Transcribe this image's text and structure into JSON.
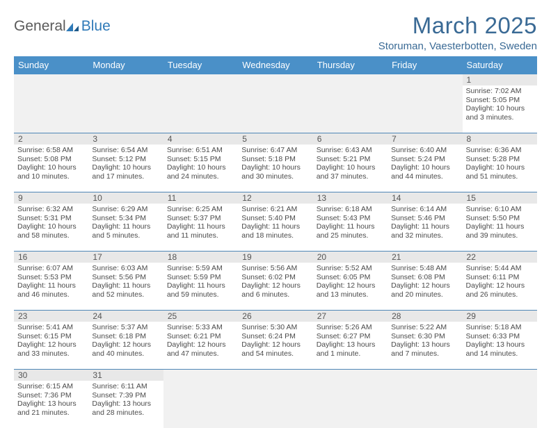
{
  "logo": {
    "text1": "General",
    "text2": "Blue"
  },
  "title": "March 2025",
  "location": "Storuman, Vaesterbotten, Sweden",
  "colors": {
    "header_bg": "#4a90c8",
    "header_text": "#ffffff",
    "title_color": "#3a6a95",
    "row_border": "#4e86b6",
    "daynum_bg": "#e8e8e8",
    "empty_bg": "#f1f1f1"
  },
  "day_names": [
    "Sunday",
    "Monday",
    "Tuesday",
    "Wednesday",
    "Thursday",
    "Friday",
    "Saturday"
  ],
  "weeks": [
    [
      null,
      null,
      null,
      null,
      null,
      null,
      {
        "n": "1",
        "sunrise": "7:02 AM",
        "sunset": "5:05 PM",
        "daylight": "10 hours and 3 minutes."
      }
    ],
    [
      {
        "n": "2",
        "sunrise": "6:58 AM",
        "sunset": "5:08 PM",
        "daylight": "10 hours and 10 minutes."
      },
      {
        "n": "3",
        "sunrise": "6:54 AM",
        "sunset": "5:12 PM",
        "daylight": "10 hours and 17 minutes."
      },
      {
        "n": "4",
        "sunrise": "6:51 AM",
        "sunset": "5:15 PM",
        "daylight": "10 hours and 24 minutes."
      },
      {
        "n": "5",
        "sunrise": "6:47 AM",
        "sunset": "5:18 PM",
        "daylight": "10 hours and 30 minutes."
      },
      {
        "n": "6",
        "sunrise": "6:43 AM",
        "sunset": "5:21 PM",
        "daylight": "10 hours and 37 minutes."
      },
      {
        "n": "7",
        "sunrise": "6:40 AM",
        "sunset": "5:24 PM",
        "daylight": "10 hours and 44 minutes."
      },
      {
        "n": "8",
        "sunrise": "6:36 AM",
        "sunset": "5:28 PM",
        "daylight": "10 hours and 51 minutes."
      }
    ],
    [
      {
        "n": "9",
        "sunrise": "6:32 AM",
        "sunset": "5:31 PM",
        "daylight": "10 hours and 58 minutes."
      },
      {
        "n": "10",
        "sunrise": "6:29 AM",
        "sunset": "5:34 PM",
        "daylight": "11 hours and 5 minutes."
      },
      {
        "n": "11",
        "sunrise": "6:25 AM",
        "sunset": "5:37 PM",
        "daylight": "11 hours and 11 minutes."
      },
      {
        "n": "12",
        "sunrise": "6:21 AM",
        "sunset": "5:40 PM",
        "daylight": "11 hours and 18 minutes."
      },
      {
        "n": "13",
        "sunrise": "6:18 AM",
        "sunset": "5:43 PM",
        "daylight": "11 hours and 25 minutes."
      },
      {
        "n": "14",
        "sunrise": "6:14 AM",
        "sunset": "5:46 PM",
        "daylight": "11 hours and 32 minutes."
      },
      {
        "n": "15",
        "sunrise": "6:10 AM",
        "sunset": "5:50 PM",
        "daylight": "11 hours and 39 minutes."
      }
    ],
    [
      {
        "n": "16",
        "sunrise": "6:07 AM",
        "sunset": "5:53 PM",
        "daylight": "11 hours and 46 minutes."
      },
      {
        "n": "17",
        "sunrise": "6:03 AM",
        "sunset": "5:56 PM",
        "daylight": "11 hours and 52 minutes."
      },
      {
        "n": "18",
        "sunrise": "5:59 AM",
        "sunset": "5:59 PM",
        "daylight": "11 hours and 59 minutes."
      },
      {
        "n": "19",
        "sunrise": "5:56 AM",
        "sunset": "6:02 PM",
        "daylight": "12 hours and 6 minutes."
      },
      {
        "n": "20",
        "sunrise": "5:52 AM",
        "sunset": "6:05 PM",
        "daylight": "12 hours and 13 minutes."
      },
      {
        "n": "21",
        "sunrise": "5:48 AM",
        "sunset": "6:08 PM",
        "daylight": "12 hours and 20 minutes."
      },
      {
        "n": "22",
        "sunrise": "5:44 AM",
        "sunset": "6:11 PM",
        "daylight": "12 hours and 26 minutes."
      }
    ],
    [
      {
        "n": "23",
        "sunrise": "5:41 AM",
        "sunset": "6:15 PM",
        "daylight": "12 hours and 33 minutes."
      },
      {
        "n": "24",
        "sunrise": "5:37 AM",
        "sunset": "6:18 PM",
        "daylight": "12 hours and 40 minutes."
      },
      {
        "n": "25",
        "sunrise": "5:33 AM",
        "sunset": "6:21 PM",
        "daylight": "12 hours and 47 minutes."
      },
      {
        "n": "26",
        "sunrise": "5:30 AM",
        "sunset": "6:24 PM",
        "daylight": "12 hours and 54 minutes."
      },
      {
        "n": "27",
        "sunrise": "5:26 AM",
        "sunset": "6:27 PM",
        "daylight": "13 hours and 1 minute."
      },
      {
        "n": "28",
        "sunrise": "5:22 AM",
        "sunset": "6:30 PM",
        "daylight": "13 hours and 7 minutes."
      },
      {
        "n": "29",
        "sunrise": "5:18 AM",
        "sunset": "6:33 PM",
        "daylight": "13 hours and 14 minutes."
      }
    ],
    [
      {
        "n": "30",
        "sunrise": "6:15 AM",
        "sunset": "7:36 PM",
        "daylight": "13 hours and 21 minutes."
      },
      {
        "n": "31",
        "sunrise": "6:11 AM",
        "sunset": "7:39 PM",
        "daylight": "13 hours and 28 minutes."
      },
      null,
      null,
      null,
      null,
      null
    ]
  ],
  "labels": {
    "sunrise": "Sunrise: ",
    "sunset": "Sunset: ",
    "daylight": "Daylight: "
  }
}
